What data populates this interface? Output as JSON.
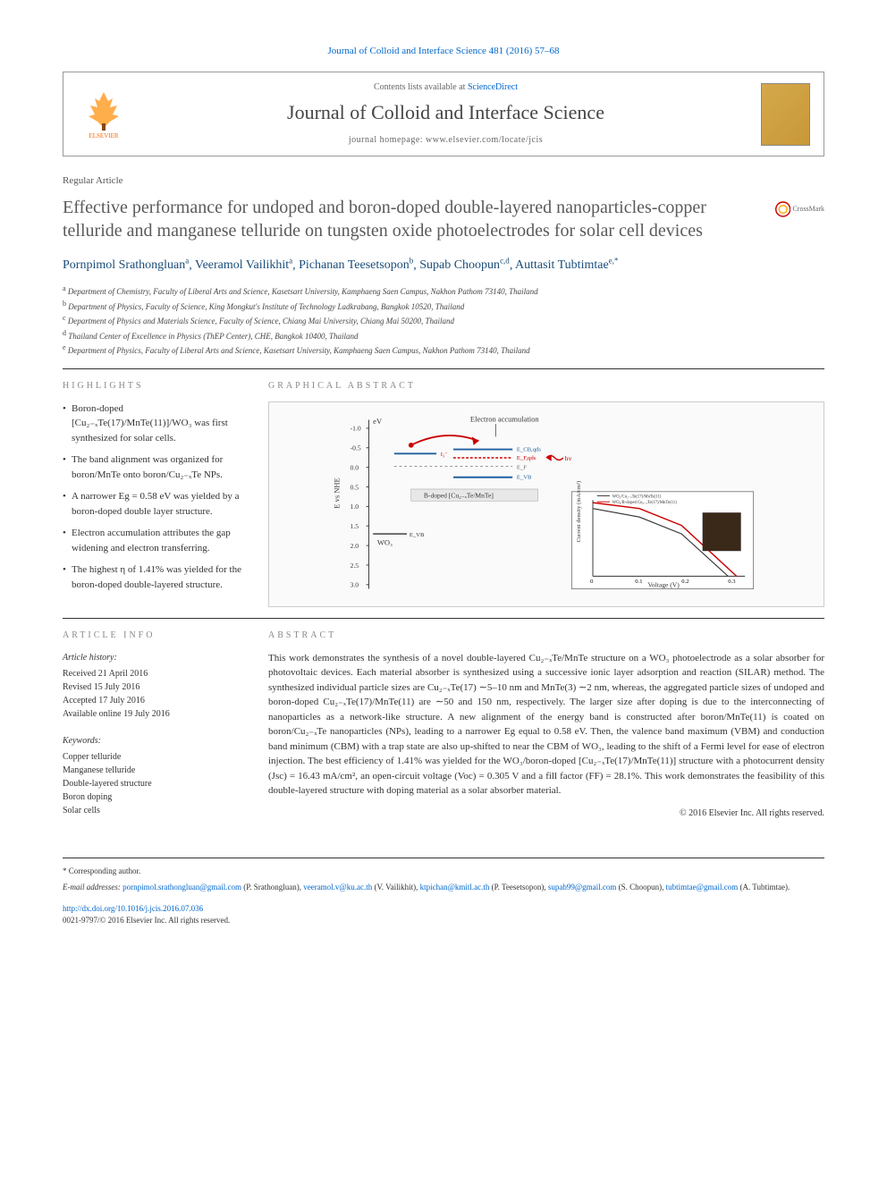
{
  "top_reference": {
    "journal_link_text": "Journal of Colloid and Interface Science 481 (2016) 57–68",
    "journal_link_color": "#0066cc"
  },
  "header": {
    "publisher_name": "ELSEVIER",
    "contents_prefix": "Contents lists available at ",
    "contents_link_text": "ScienceDirect",
    "journal_name": "Journal of Colloid and Interface Science",
    "homepage_label": "journal homepage: www.elsevier.com/locate/jcis"
  },
  "article_type": "Regular Article",
  "title": "Effective performance for undoped and boron-doped double-layered nanoparticles-copper telluride and manganese telluride on tungsten oxide photoelectrodes for solar cell devices",
  "crossmark_label": "CrossMark",
  "authors": [
    {
      "name": "Pornpimol Srathongluan",
      "aff": "a"
    },
    {
      "name": "Veeramol Vailikhit",
      "aff": "a"
    },
    {
      "name": "Pichanan Teesetsopon",
      "aff": "b"
    },
    {
      "name": "Supab Choopun",
      "aff": "c,d"
    },
    {
      "name": "Auttasit Tubtimtae",
      "aff": "e,*"
    }
  ],
  "affiliations": [
    {
      "key": "a",
      "text": "Department of Chemistry, Faculty of Liberal Arts and Science, Kasetsart University, Kamphaeng Saen Campus, Nakhon Pathom 73140, Thailand"
    },
    {
      "key": "b",
      "text": "Department of Physics, Faculty of Science, King Mongkut's Institute of Technology Ladkrabang, Bangkok 10520, Thailand"
    },
    {
      "key": "c",
      "text": "Department of Physics and Materials Science, Faculty of Science, Chiang Mai University, Chiang Mai 50200, Thailand"
    },
    {
      "key": "d",
      "text": "Thailand Center of Excellence in Physics (ThEP Center), CHE, Bangkok 10400, Thailand"
    },
    {
      "key": "e",
      "text": "Department of Physics, Faculty of Liberal Arts and Science, Kasetsart University, Kamphaeng Saen Campus, Nakhon Pathom 73140, Thailand"
    }
  ],
  "highlights": {
    "label": "HIGHLIGHTS",
    "items": [
      "Boron-doped [Cu₂₋ₓTe(17)/MnTe(11)]/WO₃ was first synthesized for solar cells.",
      "The band alignment was organized for boron/MnTe onto boron/Cu₂₋ₓTe NPs.",
      "A narrower Eg = 0.58 eV was yielded by a boron-doped double layer structure.",
      "Electron accumulation attributes the gap widening and electron transferring.",
      "The highest η of 1.41% was yielded for the boron-doped double-layered structure."
    ]
  },
  "graphical_abstract": {
    "label": "GRAPHICAL ABSTRACT",
    "diagram": {
      "y_axis_label": "E vs NHE",
      "x_axis_top_label": "eV",
      "annotation_top": "Electron accumulation",
      "material_label": "B-doped [Cu₂₋ₓTe/MnTe]",
      "wo3_label": "WO₃",
      "energy_levels": [
        -1.0,
        -0.5,
        0.0,
        0.5,
        1.0,
        1.5,
        2.0,
        2.5,
        3.0
      ],
      "level_labels": [
        "E_CB,qds",
        "E_F,qds",
        "E_F",
        "E_VB",
        "E_VB,qds",
        "E_CB",
        "E₁³⁻",
        "E_VB"
      ],
      "hv_label": "hv",
      "inset_chart": {
        "x_label": "Voltage (V)",
        "y_label": "Current density (mA/cm²)",
        "x_range": [
          0,
          0.3
        ],
        "x_ticks": [
          0,
          0.1,
          0.2,
          0.3
        ],
        "y_range": [
          0,
          20
        ],
        "legend": [
          "WO₃/Cu₂₋ₓTe(17)/MnTe(11)",
          "WO₃/B-doped Cu₂₋ₓTe(17)/MnTe(11)"
        ],
        "series_colors": [
          "#333333",
          "#cc0000"
        ]
      },
      "colors": {
        "arrow_red": "#cc0000",
        "level_blue": "#2060a0",
        "level_red": "#cc0000",
        "dashed_gray": "#888888",
        "background": "#fafafa"
      }
    }
  },
  "article_info": {
    "label": "ARTICLE INFO",
    "history_heading": "Article history:",
    "history": [
      "Received 21 April 2016",
      "Revised 15 July 2016",
      "Accepted 17 July 2016",
      "Available online 19 July 2016"
    ],
    "keywords_heading": "Keywords:",
    "keywords": [
      "Copper telluride",
      "Manganese telluride",
      "Double-layered structure",
      "Boron doping",
      "Solar cells"
    ]
  },
  "abstract": {
    "label": "ABSTRACT",
    "text": "This work demonstrates the synthesis of a novel double-layered Cu₂₋ₓTe/MnTe structure on a WO₃ photoelectrode as a solar absorber for photovoltaic devices. Each material absorber is synthesized using a successive ionic layer adsorption and reaction (SILAR) method. The synthesized individual particle sizes are Cu₂₋ₓTe(17) ∼5–10 nm and MnTe(3) ∼2 nm, whereas, the aggregated particle sizes of undoped and boron-doped Cu₂₋ₓTe(17)/MnTe(11) are ∼50 and 150 nm, respectively. The larger size after doping is due to the interconnecting of nanoparticles as a network-like structure. A new alignment of the energy band is constructed after boron/MnTe(11) is coated on boron/Cu₂₋ₓTe nanoparticles (NPs), leading to a narrower Eg equal to 0.58 eV. Then, the valence band maximum (VBM) and conduction band minimum (CBM) with a trap state are also up-shifted to near the CBM of WO₃, leading to the shift of a Fermi level for ease of electron injection. The best efficiency of 1.41% was yielded for the WO₃/boron-doped [Cu₂₋ₓTe(17)/MnTe(11)] structure with a photocurrent density (Jsc) = 16.43 mA/cm², an open-circuit voltage (Voc) = 0.305 V and a fill factor (FF) = 28.1%. This work demonstrates the feasibility of this double-layered structure with doping material as a solar absorber material.",
    "copyright": "© 2016 Elsevier Inc. All rights reserved."
  },
  "footer": {
    "corresponding_marker": "* Corresponding author.",
    "email_label": "E-mail addresses:",
    "emails": [
      {
        "addr": "pornpimol.srathongluan@gmail.com",
        "who": "(P. Srathongluan)"
      },
      {
        "addr": "veeramol.v@ku.ac.th",
        "who": "(V. Vailikhit)"
      },
      {
        "addr": "ktpichan@kmitl.ac.th",
        "who": "(P. Teesetsopon)"
      },
      {
        "addr": "supab99@gmail.com",
        "who": "(S. Choopun)"
      },
      {
        "addr": "tubtimtae@gmail.com",
        "who": "(A. Tubtimtae)"
      }
    ],
    "doi_link": "http://dx.doi.org/10.1016/j.jcis.2016.07.036",
    "issn_line": "0021-9797/© 2016 Elsevier Inc. All rights reserved."
  }
}
